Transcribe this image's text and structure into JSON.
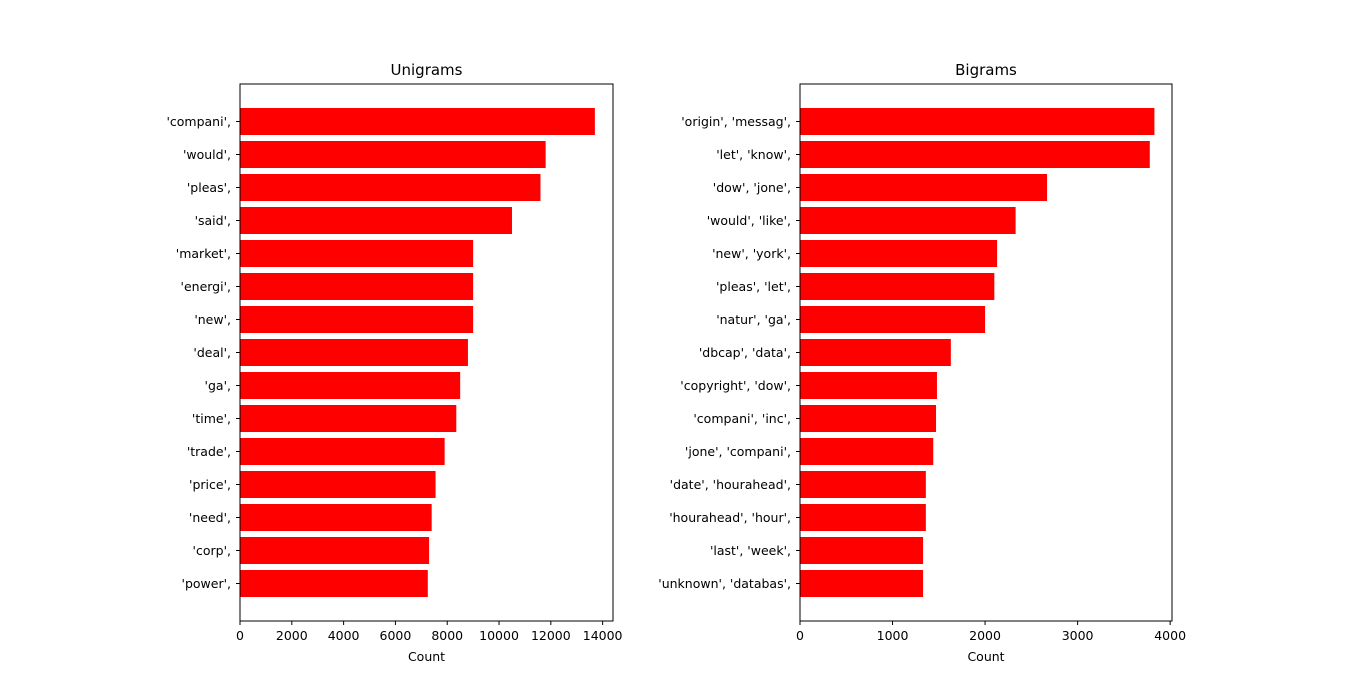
{
  "chart_data": [
    {
      "type": "bar",
      "orientation": "horizontal",
      "title": "Unigrams",
      "xlabel": "Count",
      "ylabel": "",
      "xlim": [
        0,
        14400
      ],
      "xticks": [
        0,
        2000,
        4000,
        6000,
        8000,
        10000,
        12000,
        14000
      ],
      "xtick_labels": [
        "0",
        "2000",
        "4000",
        "6000",
        "8000",
        "10000",
        "12000",
        "14000"
      ],
      "bar_color": "#ff0000",
      "categories": [
        "'compani',",
        "'would',",
        "'pleas',",
        "'said',",
        "'market',",
        "'energi',",
        "'new',",
        "'deal',",
        "'ga',",
        "'time',",
        "'trade',",
        "'price',",
        "'need',",
        "'corp',",
        "'power',"
      ],
      "values": [
        13700,
        11800,
        11600,
        10500,
        9000,
        9000,
        9000,
        8800,
        8500,
        8350,
        7900,
        7550,
        7400,
        7300,
        7250
      ]
    },
    {
      "type": "bar",
      "orientation": "horizontal",
      "title": "Bigrams",
      "xlabel": "Count",
      "ylabel": "",
      "xlim": [
        0,
        4020
      ],
      "xticks": [
        0,
        1000,
        2000,
        3000,
        4000
      ],
      "xtick_labels": [
        "0",
        "1000",
        "2000",
        "3000",
        "4000"
      ],
      "bar_color": "#ff0000",
      "categories": [
        "'origin', 'messag',",
        "'let', 'know',",
        "'dow', 'jone',",
        "'would', 'like',",
        "'new', 'york',",
        "'pleas', 'let',",
        "'natur', 'ga',",
        "'dbcap', 'data',",
        "'copyright', 'dow',",
        "'compani', 'inc',",
        "'jone', 'compani',",
        "'date', 'hourahead',",
        "'hourahead', 'hour',",
        "'last', 'week',",
        "'unknown', 'databas',"
      ],
      "values": [
        3830,
        3780,
        2670,
        2330,
        2130,
        2100,
        2000,
        1630,
        1480,
        1470,
        1440,
        1360,
        1360,
        1330,
        1330
      ]
    }
  ]
}
